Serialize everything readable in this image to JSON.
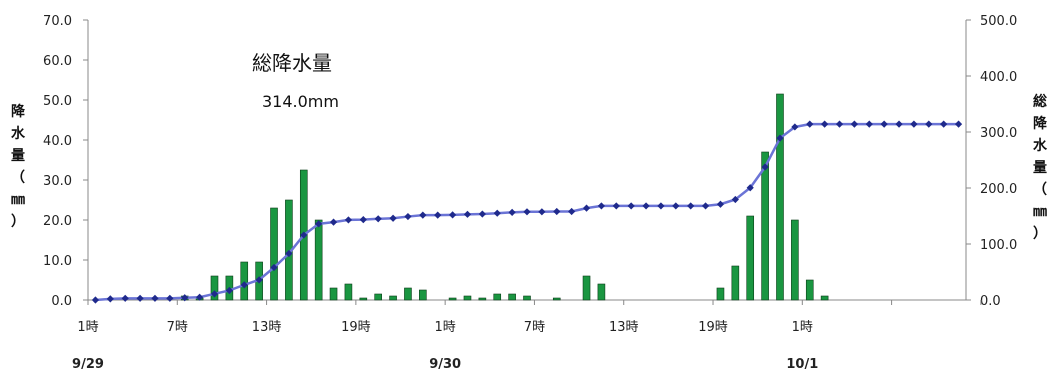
{
  "chart_data": {
    "type": "bar",
    "x_ticks": [
      "1時",
      "7時",
      "13時",
      "19時",
      "1時",
      "7時",
      "13時",
      "19時",
      "1時"
    ],
    "date_labels": [
      "9/29",
      "9/30",
      "10/1"
    ],
    "left_axis": {
      "label": "降水量（㎜）",
      "ylim": [
        0,
        70
      ],
      "ticks": [
        "0.0",
        "10.0",
        "20.0",
        "30.0",
        "40.0",
        "50.0",
        "60.0",
        "70.0"
      ]
    },
    "right_axis": {
      "label": "総降水量（㎜）",
      "ylim": [
        0,
        500
      ],
      "ticks": [
        "0.0",
        "100.0",
        "200.0",
        "300.0",
        "400.0",
        "500.0"
      ]
    },
    "annotation": {
      "title": "総降水量",
      "value": "314.0mm"
    },
    "grid": false,
    "legend": "none",
    "series": [
      {
        "type": "bar",
        "axis": "left",
        "color": "#1a9641",
        "values": [
          0,
          0,
          0,
          0,
          0,
          0,
          1.0,
          0.5,
          6.0,
          6.0,
          9.5,
          9.5,
          23.0,
          25.0,
          32.5,
          20.0,
          3.0,
          4.0,
          0.5,
          1.5,
          1.0,
          3.0,
          2.5,
          0,
          0.5,
          1.0,
          0.5,
          1.5,
          1.5,
          1.0,
          0,
          0.5,
          0,
          6.0,
          4.0,
          0,
          0,
          0,
          0,
          0,
          0,
          0,
          3.0,
          8.5,
          21.0,
          37.0,
          51.5,
          20.0,
          5.0,
          1.0,
          0,
          0,
          0,
          0,
          0,
          0,
          0,
          0,
          0
        ]
      },
      {
        "type": "line",
        "axis": "right",
        "color": "#1f2a8c",
        "values": [
          0,
          2,
          3,
          3,
          3,
          3,
          4,
          5,
          11,
          17,
          27,
          36,
          58,
          83,
          116,
          136,
          139,
          143,
          143.5,
          145,
          146,
          149,
          151.5,
          151.5,
          152,
          153,
          153.5,
          155,
          156.5,
          157.5,
          157.5,
          158,
          158,
          164,
          168,
          168,
          168,
          168,
          168,
          168,
          168,
          168,
          171,
          179.5,
          200.5,
          237.5,
          289,
          309,
          314,
          314,
          314,
          314,
          314,
          314,
          314,
          314,
          314,
          314,
          314
        ]
      }
    ]
  }
}
